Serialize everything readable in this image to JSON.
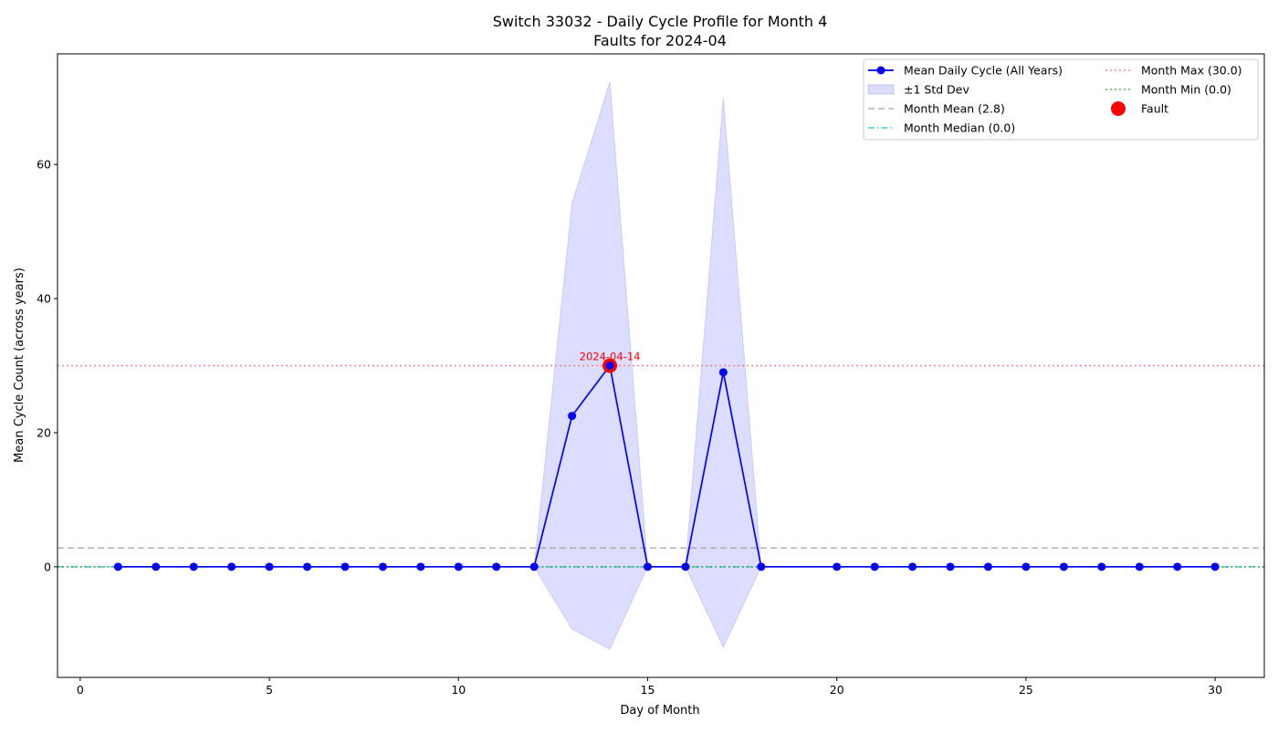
{
  "chart_data": {
    "type": "line",
    "title": "Switch 33032 - Daily Cycle Profile for Month 4",
    "subtitle": "Faults for 2024-04",
    "xlabel": "Day of Month",
    "ylabel": "Mean Cycle Count (across years)",
    "xlim": [
      -0.6,
      31.3
    ],
    "ylim": [
      -16.5,
      76.5
    ],
    "xticks": [
      0,
      5,
      10,
      15,
      20,
      25,
      30
    ],
    "yticks": [
      0,
      20,
      40,
      60
    ],
    "grid": false,
    "legend_position": "top-right",
    "x": [
      1,
      2,
      3,
      4,
      5,
      6,
      7,
      8,
      9,
      10,
      11,
      12,
      13,
      14,
      15,
      16,
      17,
      18,
      20,
      21,
      22,
      23,
      24,
      25,
      26,
      27,
      28,
      29,
      30
    ],
    "series": [
      {
        "name": "Mean Daily Cycle (All Years)",
        "color": "#0000ff",
        "values": [
          0,
          0,
          0,
          0,
          0,
          0,
          0,
          0,
          0,
          0,
          0,
          0,
          22.5,
          30,
          0,
          0,
          29,
          0,
          0,
          0,
          0,
          0,
          0,
          0,
          0,
          0,
          0,
          0,
          0
        ]
      }
    ],
    "band": {
      "name": "±1 Std Dev",
      "color": "#6666ff",
      "upper": [
        0,
        0,
        0,
        0,
        0,
        0,
        0,
        0,
        0,
        0,
        0,
        0,
        54.2,
        72.3,
        0,
        0,
        70,
        0,
        0,
        0,
        0,
        0,
        0,
        0,
        0,
        0,
        0,
        0,
        0
      ],
      "lower": [
        0,
        0,
        0,
        0,
        0,
        0,
        0,
        0,
        0,
        0,
        0,
        0,
        -9.3,
        -12.3,
        0,
        0,
        -12,
        0,
        0,
        0,
        0,
        0,
        0,
        0,
        0,
        0,
        0,
        0,
        0
      ]
    },
    "reference_lines": [
      {
        "name": "Month Mean (2.8)",
        "y": 2.8,
        "color": "#a0a0a0",
        "style": "dashed"
      },
      {
        "name": "Month Median (0.0)",
        "y": 0.0,
        "color": "#17becf",
        "style": "dashdot"
      },
      {
        "name": "Month Max (30.0)",
        "y": 30.0,
        "color": "#ff6666",
        "style": "dotted"
      },
      {
        "name": "Month Min (0.0)",
        "y": 0.0,
        "color": "#2ca02c",
        "style": "dotted"
      }
    ],
    "faults": [
      {
        "x": 14,
        "y": 30,
        "label": "2024-04-14",
        "color": "#ff0000"
      }
    ],
    "fault_legend_label": "Fault"
  }
}
